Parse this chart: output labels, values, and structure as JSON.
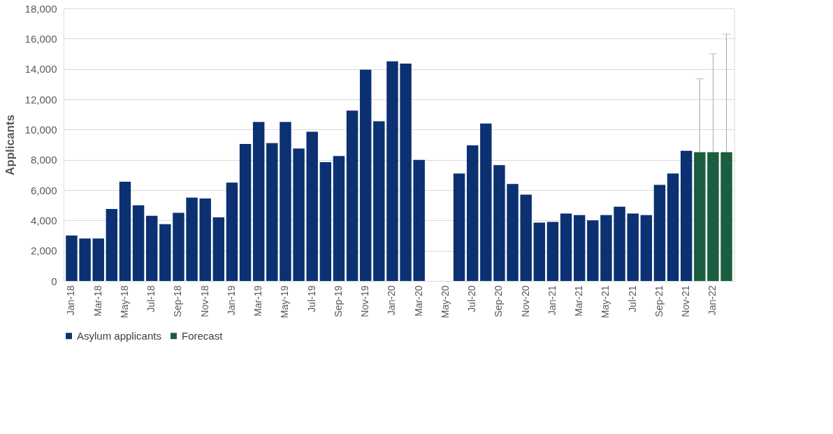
{
  "chart_data": {
    "type": "bar",
    "ylabel": "Applicants",
    "categories": [
      "Jan-18",
      null,
      "Mar-18",
      null,
      "May-18",
      null,
      "Jul-18",
      null,
      "Sep-18",
      null,
      "Nov-18",
      null,
      "Jan-19",
      null,
      "Mar-19",
      null,
      "May-19",
      null,
      "Jul-19",
      null,
      "Sep-19",
      null,
      "Nov-19",
      null,
      "Jan-20",
      null,
      "Mar-20",
      null,
      "May-20",
      null,
      "Jul-20",
      null,
      "Sep-20",
      null,
      "Nov-20",
      null,
      "Jan-21",
      null,
      "Mar-21",
      null,
      "May-21",
      null,
      "Jul-21",
      null,
      "Sep-21",
      null,
      "Nov-21",
      null,
      "Jan-22",
      null
    ],
    "series": [
      {
        "name": "Asylum applicants",
        "color": "#0b3172",
        "values": [
          3000,
          2800,
          2800,
          4750,
          6550,
          5000,
          4300,
          3750,
          4500,
          5500,
          5450,
          4200,
          6500,
          9050,
          10500,
          9100,
          10500,
          8750,
          9850,
          7850,
          8250,
          11250,
          13950,
          10550,
          14500,
          14350,
          8000,
          null,
          null,
          7100,
          8950,
          10400,
          7650,
          6400,
          5700,
          3850,
          3900,
          4450,
          4350,
          4000,
          4350,
          4900,
          4450,
          4350,
          6350,
          7100,
          8600,
          null,
          null,
          null
        ]
      },
      {
        "name": "Forecast",
        "color": "#1a5e3f",
        "values": [
          null,
          null,
          null,
          null,
          null,
          null,
          null,
          null,
          null,
          null,
          null,
          null,
          null,
          null,
          null,
          null,
          null,
          null,
          null,
          null,
          null,
          null,
          null,
          null,
          null,
          null,
          null,
          null,
          null,
          null,
          null,
          null,
          null,
          null,
          null,
          null,
          null,
          null,
          null,
          null,
          null,
          null,
          null,
          null,
          null,
          null,
          null,
          8500,
          8500,
          8500
        ],
        "errors": [
          null,
          null,
          null,
          null,
          null,
          null,
          null,
          null,
          null,
          null,
          null,
          null,
          null,
          null,
          null,
          null,
          null,
          null,
          null,
          null,
          null,
          null,
          null,
          null,
          null,
          null,
          null,
          null,
          null,
          null,
          null,
          null,
          null,
          null,
          null,
          null,
          null,
          null,
          null,
          null,
          null,
          null,
          null,
          null,
          null,
          null,
          null,
          [
            8500,
            13350
          ],
          [
            8500,
            15000
          ],
          [
            8500,
            16300
          ]
        ]
      }
    ],
    "ylim": [
      0,
      18000
    ],
    "yticks": [
      0,
      {
        "value": 2000,
        "label": "2,000"
      },
      {
        "value": 4000,
        "label": "4,000"
      },
      {
        "value": 6000,
        "label": "6,000"
      },
      {
        "value": 8000,
        "label": "8,000"
      },
      {
        "value": 10000,
        "label": "10,000"
      },
      {
        "value": 12000,
        "label": "12,000"
      },
      {
        "value": 14000,
        "label": "14,000"
      },
      {
        "value": 16000,
        "label": "16,000"
      },
      {
        "value": 18000,
        "label": "18,000"
      }
    ],
    "grid": "y",
    "legend": "bottom"
  }
}
